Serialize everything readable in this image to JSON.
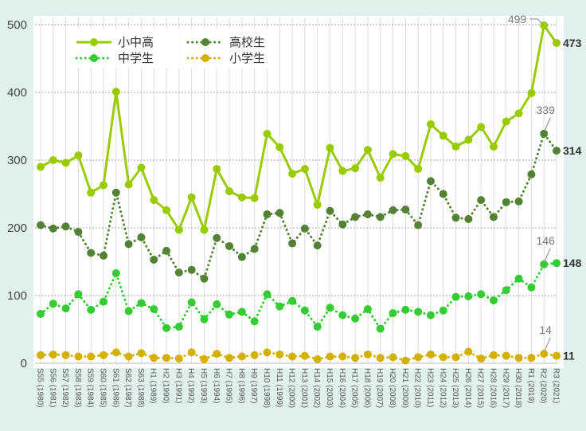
{
  "chart_data": {
    "type": "line",
    "title": "",
    "xlabel": "",
    "ylabel": "",
    "ylim": [
      0,
      500
    ],
    "yticks": [
      0,
      100,
      200,
      300,
      400,
      500
    ],
    "grid": {
      "horizontal": "dotted",
      "vertical": "solid-light"
    },
    "legend_position": "top-left",
    "categories": [
      "S55 (1980)",
      "S56 (1981)",
      "S57 (1982)",
      "S58 (1983)",
      "S59 (1984)",
      "S60 (1985)",
      "S61 (1986)",
      "S62 (1987)",
      "S63 (1988)",
      "H1 (1989)",
      "H2 (1990)",
      "H3 (1991)",
      "H4 (1992)",
      "H5 (1993)",
      "H6 (1994)",
      "H7 (1995)",
      "H8 (1996)",
      "H9 (1997)",
      "H10 (1998)",
      "H11 (1999)",
      "H12 (2000)",
      "H13 (2001)",
      "H14 (2002)",
      "H15 (2003)",
      "H16 (2004)",
      "H17 (2005)",
      "H18 (2006)",
      "H19 (2007)",
      "H20 (2008)",
      "H21 (2009)",
      "H22 (2010)",
      "H23 (2011)",
      "H24 (2012)",
      "H25 (2013)",
      "H26 (2014)",
      "H27 (2015)",
      "H28 (2016)",
      "H29 (2017)",
      "H30 (2018)",
      "R1 (2019)",
      "R2 (2020)",
      "R3 (2021)"
    ],
    "series": [
      {
        "name": "小中高",
        "color": "#99cc00",
        "style": "solid",
        "values": [
          290,
          300,
          296,
          307,
          252,
          263,
          401,
          264,
          289,
          241,
          226,
          197,
          245,
          197,
          287,
          254,
          245,
          244,
          339,
          319,
          280,
          287,
          234,
          318,
          284,
          288,
          315,
          274,
          309,
          306,
          287,
          353,
          336,
          320,
          330,
          349,
          320,
          357,
          369,
          399,
          499,
          473
        ]
      },
      {
        "name": "高校生",
        "color": "#548235",
        "style": "dotted",
        "values": [
          204,
          199,
          202,
          194,
          163,
          159,
          252,
          176,
          186,
          153,
          166,
          134,
          138,
          125,
          185,
          173,
          157,
          169,
          220,
          222,
          177,
          199,
          174,
          225,
          205,
          216,
          220,
          216,
          226,
          227,
          204,
          269,
          250,
          215,
          213,
          241,
          216,
          238,
          239,
          279,
          339,
          314
        ]
      },
      {
        "name": "中学生",
        "color": "#33cc33",
        "style": "dotted",
        "values": [
          73,
          88,
          81,
          102,
          79,
          91,
          133,
          77,
          89,
          80,
          52,
          54,
          90,
          65,
          87,
          72,
          76,
          62,
          102,
          84,
          92,
          78,
          54,
          82,
          71,
          66,
          80,
          51,
          74,
          79,
          76,
          71,
          78,
          98,
          99,
          102,
          93,
          108,
          125,
          112,
          146,
          148
        ]
      },
      {
        "name": "小学生",
        "color": "#d4b000",
        "style": "dotted",
        "values": [
          12,
          13,
          12,
          10,
          10,
          12,
          16,
          10,
          15,
          8,
          8,
          7,
          16,
          6,
          14,
          8,
          10,
          12,
          16,
          13,
          10,
          11,
          6,
          10,
          10,
          8,
          13,
          8,
          9,
          4,
          9,
          13,
          9,
          9,
          17,
          7,
          12,
          11,
          8,
          8,
          14,
          11
        ]
      }
    ],
    "annotations": [
      {
        "series": "小中高",
        "category": "R2 (2020)",
        "text": "499",
        "bold": false
      },
      {
        "series": "小中高",
        "category": "R3 (2021)",
        "text": "473",
        "bold": true
      },
      {
        "series": "高校生",
        "category": "R2 (2020)",
        "text": "339",
        "bold": false
      },
      {
        "series": "高校生",
        "category": "R3 (2021)",
        "text": "314",
        "bold": true
      },
      {
        "series": "中学生",
        "category": "R2 (2020)",
        "text": "146",
        "bold": false
      },
      {
        "series": "中学生",
        "category": "R3 (2021)",
        "text": "148",
        "bold": true
      },
      {
        "series": "小学生",
        "category": "R2 (2020)",
        "text": "14",
        "bold": false
      },
      {
        "series": "小学生",
        "category": "R3 (2021)",
        "text": "11",
        "bold": true
      }
    ]
  }
}
